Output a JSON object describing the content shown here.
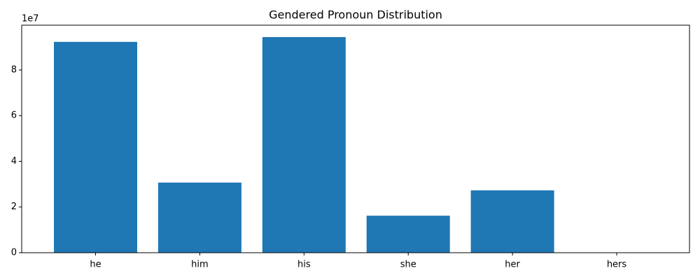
{
  "chart_data": {
    "type": "bar",
    "title": "Gendered Pronoun Distribution",
    "categories": [
      "he",
      "him",
      "his",
      "she",
      "her",
      "hers"
    ],
    "values": [
      92300000,
      30700000,
      94400000,
      16200000,
      27300000,
      30000
    ],
    "color": "#1f77b4",
    "y_offset_label": "1e7",
    "ylim": [
      0,
      99600000
    ],
    "yticks": [
      {
        "value": 0,
        "label": "0"
      },
      {
        "value": 20000000,
        "label": "2"
      },
      {
        "value": 40000000,
        "label": "4"
      },
      {
        "value": 60000000,
        "label": "6"
      },
      {
        "value": 80000000,
        "label": "8"
      }
    ],
    "grid": false
  }
}
